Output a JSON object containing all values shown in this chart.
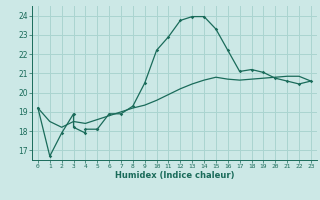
{
  "xlabel": "Humidex (Indice chaleur)",
  "background_color": "#cce8e6",
  "grid_color": "#aad4d0",
  "line_color": "#1a6b5a",
  "xlim": [
    -0.5,
    23.5
  ],
  "ylim": [
    16.5,
    24.5
  ],
  "yticks": [
    17,
    18,
    19,
    20,
    21,
    22,
    23,
    24
  ],
  "xticks": [
    0,
    1,
    2,
    3,
    4,
    5,
    6,
    7,
    8,
    9,
    10,
    11,
    12,
    13,
    14,
    15,
    16,
    17,
    18,
    19,
    20,
    21,
    22,
    23
  ],
  "series1_x": [
    0,
    1,
    2,
    3,
    3,
    4,
    4,
    5,
    5,
    6,
    7,
    8,
    9,
    10,
    11,
    12,
    13,
    14,
    15,
    16,
    17,
    18,
    19,
    20,
    21,
    22,
    23
  ],
  "series1_y": [
    19.2,
    16.7,
    17.9,
    18.9,
    18.2,
    17.9,
    18.1,
    18.1,
    18.1,
    18.9,
    18.9,
    19.3,
    20.5,
    22.2,
    22.9,
    23.75,
    23.95,
    23.95,
    23.3,
    22.2,
    21.1,
    21.2,
    21.05,
    20.75,
    20.6,
    20.45,
    20.6
  ],
  "series2_x": [
    0,
    1,
    2,
    3,
    4,
    5,
    6,
    7,
    8,
    9,
    10,
    11,
    12,
    13,
    14,
    15,
    16,
    17,
    18,
    19,
    20,
    21,
    22,
    23
  ],
  "series2_y": [
    19.2,
    18.5,
    18.2,
    18.5,
    18.4,
    18.6,
    18.8,
    19.0,
    19.2,
    19.35,
    19.6,
    19.9,
    20.2,
    20.45,
    20.65,
    20.8,
    20.7,
    20.65,
    20.7,
    20.75,
    20.8,
    20.85,
    20.85,
    20.6
  ]
}
